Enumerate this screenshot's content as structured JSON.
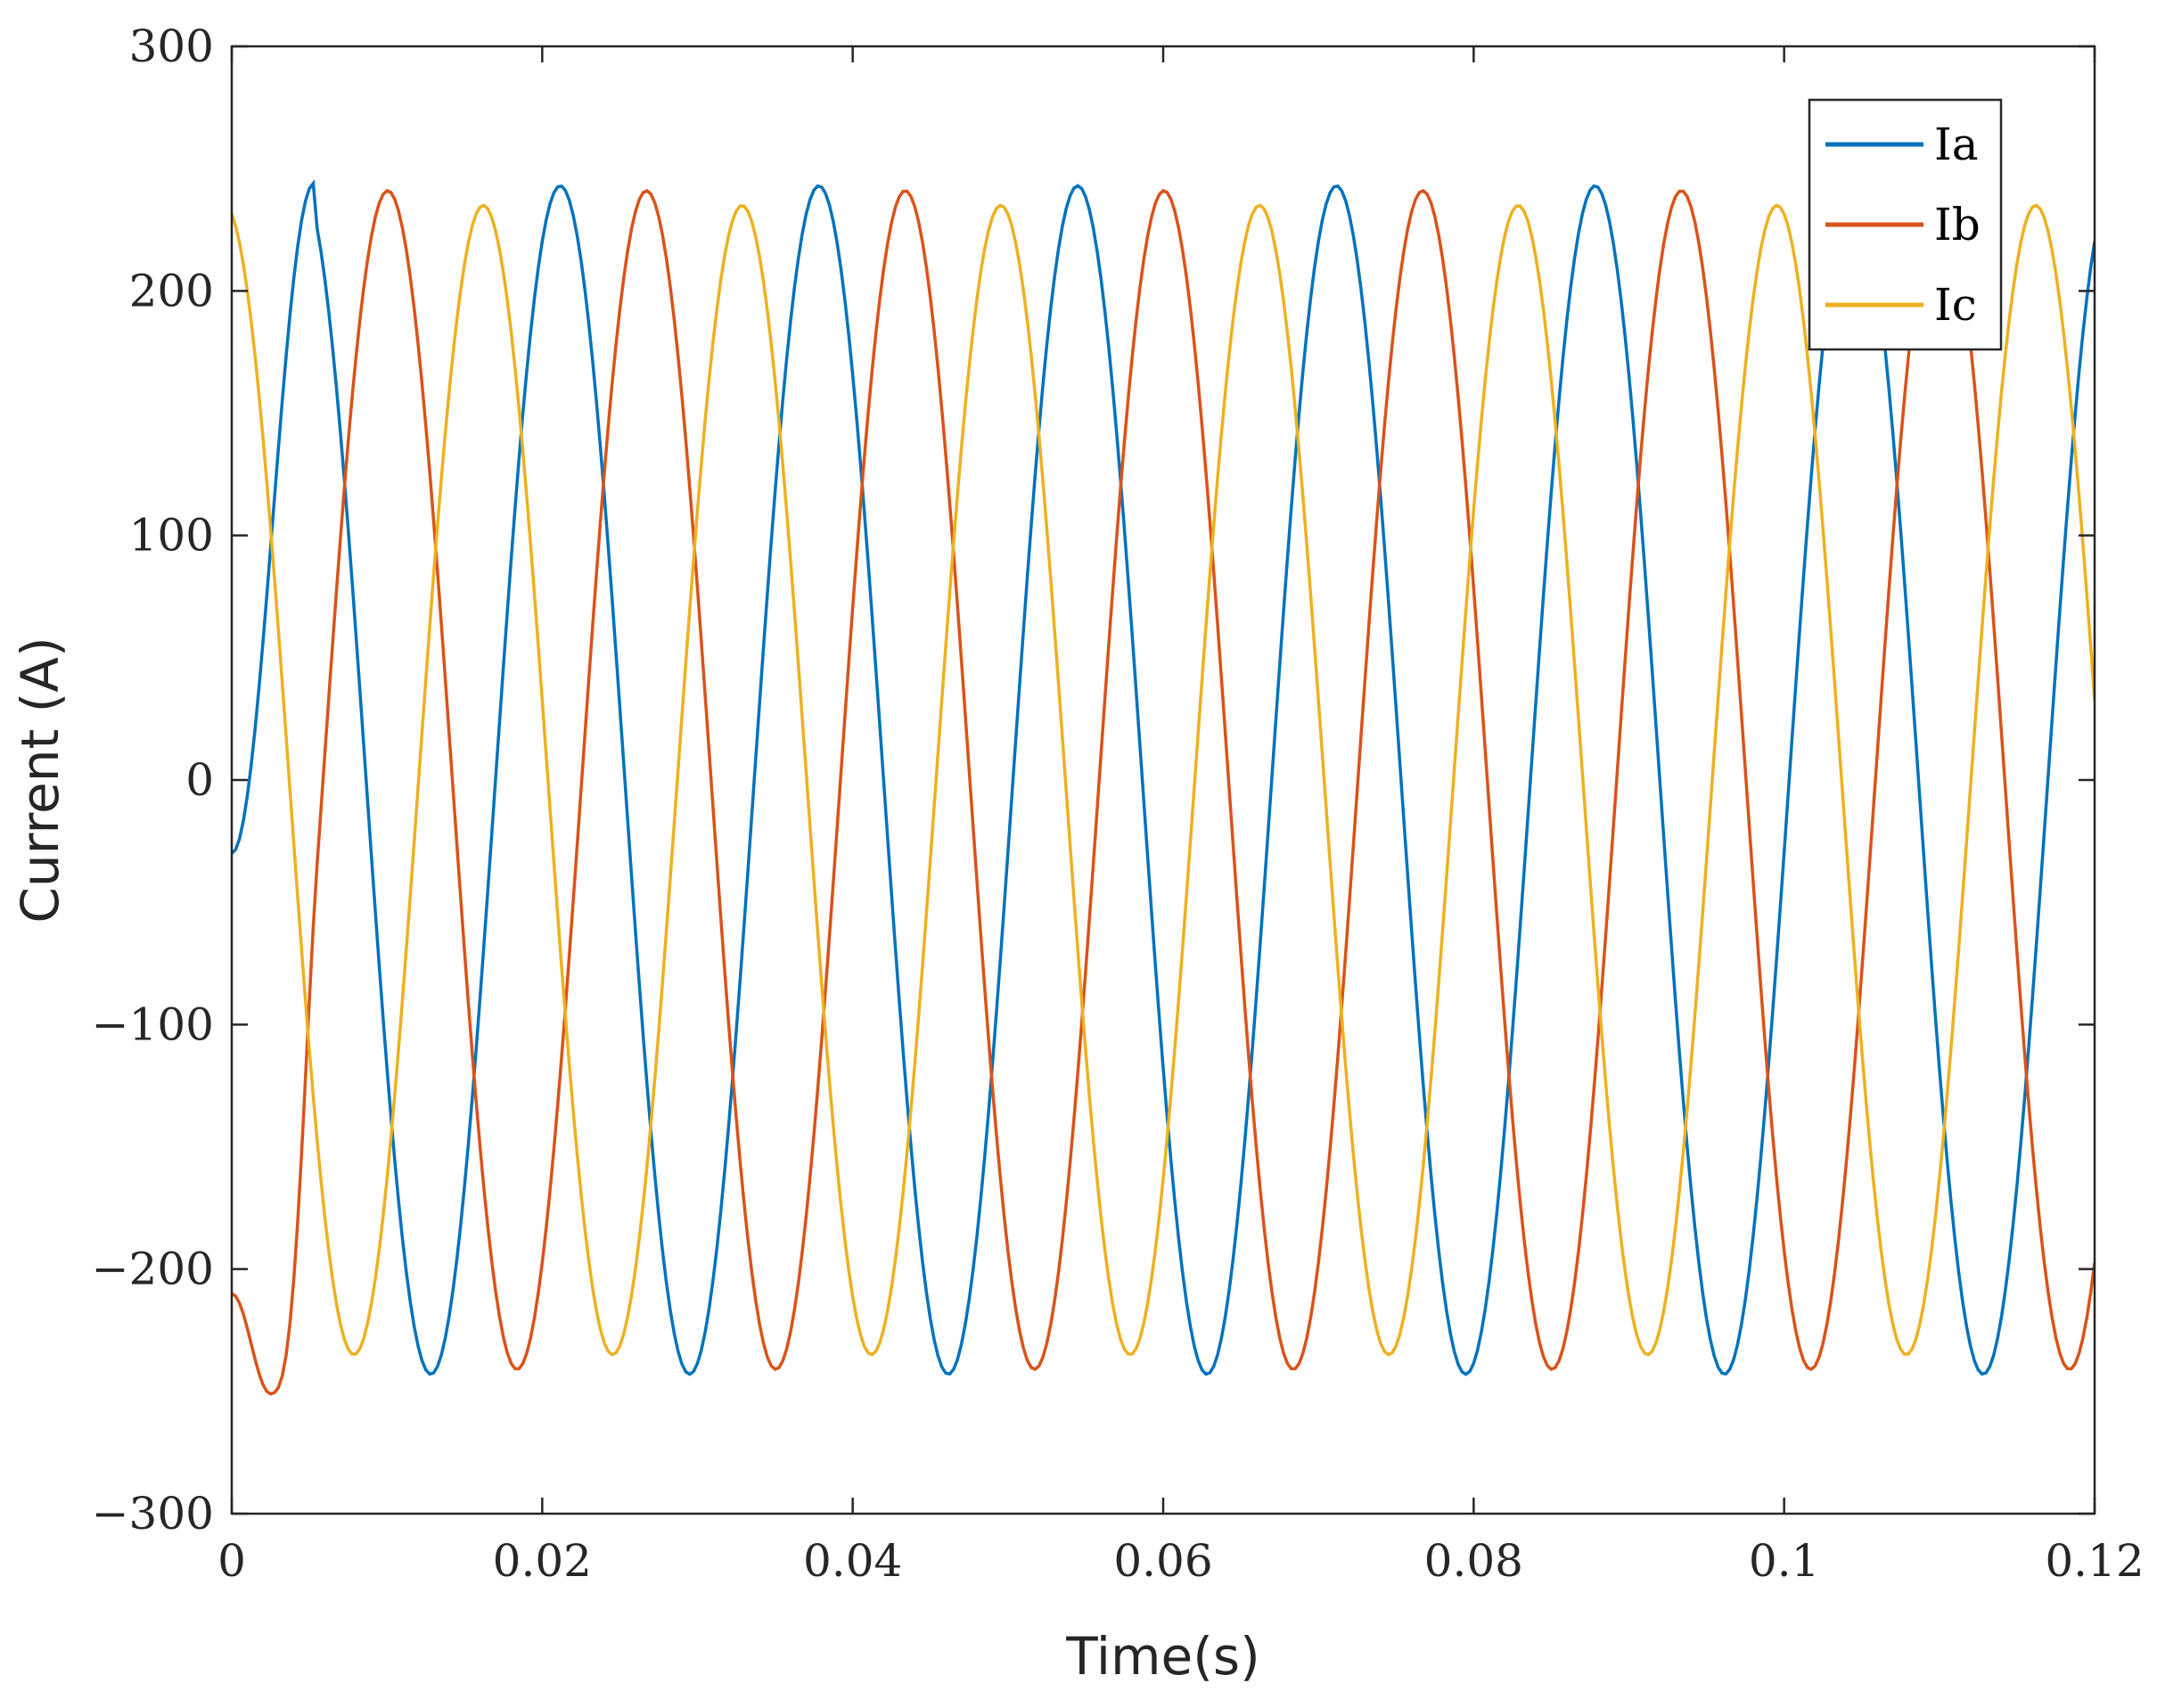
{
  "chart_data": {
    "type": "line",
    "title": "",
    "xlabel": "Time(s)",
    "ylabel": "Current (A)",
    "xlim": [
      0,
      0.12
    ],
    "ylim": [
      -300,
      300
    ],
    "xticks": [
      0,
      0.02,
      0.04,
      0.06,
      0.08,
      0.1,
      0.12
    ],
    "xtick_labels": [
      "0",
      "0.02",
      "0.04",
      "0.06",
      "0.08",
      "0.1",
      "0.12"
    ],
    "yticks": [
      -300,
      -200,
      -100,
      0,
      100,
      200,
      300
    ],
    "ytick_labels": [
      "−300",
      "−200",
      "−100",
      "0",
      "100",
      "200",
      "300"
    ],
    "grid": false,
    "legend": {
      "position": "top-right"
    },
    "x_start": 0,
    "x_end": 0.12,
    "x_step": 0.00025,
    "frequency_hz": 60,
    "series": [
      {
        "name": "Ia",
        "color": "#0072BD",
        "amplitude": 243,
        "phase_deg": -7,
        "startup": {
          "start_value": -30,
          "peak_time": 0.0053,
          "peak_value": 244
        }
      },
      {
        "name": "Ib",
        "color": "#D95319",
        "amplitude": 241,
        "phase_deg": -127,
        "startup": {
          "start_value": -210,
          "trough_time": 0.0025,
          "trough_value": -251
        }
      },
      {
        "name": "Ic",
        "color": "#EDB120",
        "amplitude": 235,
        "phase_deg": 100,
        "startup": {
          "start_value": 232
        }
      }
    ]
  }
}
